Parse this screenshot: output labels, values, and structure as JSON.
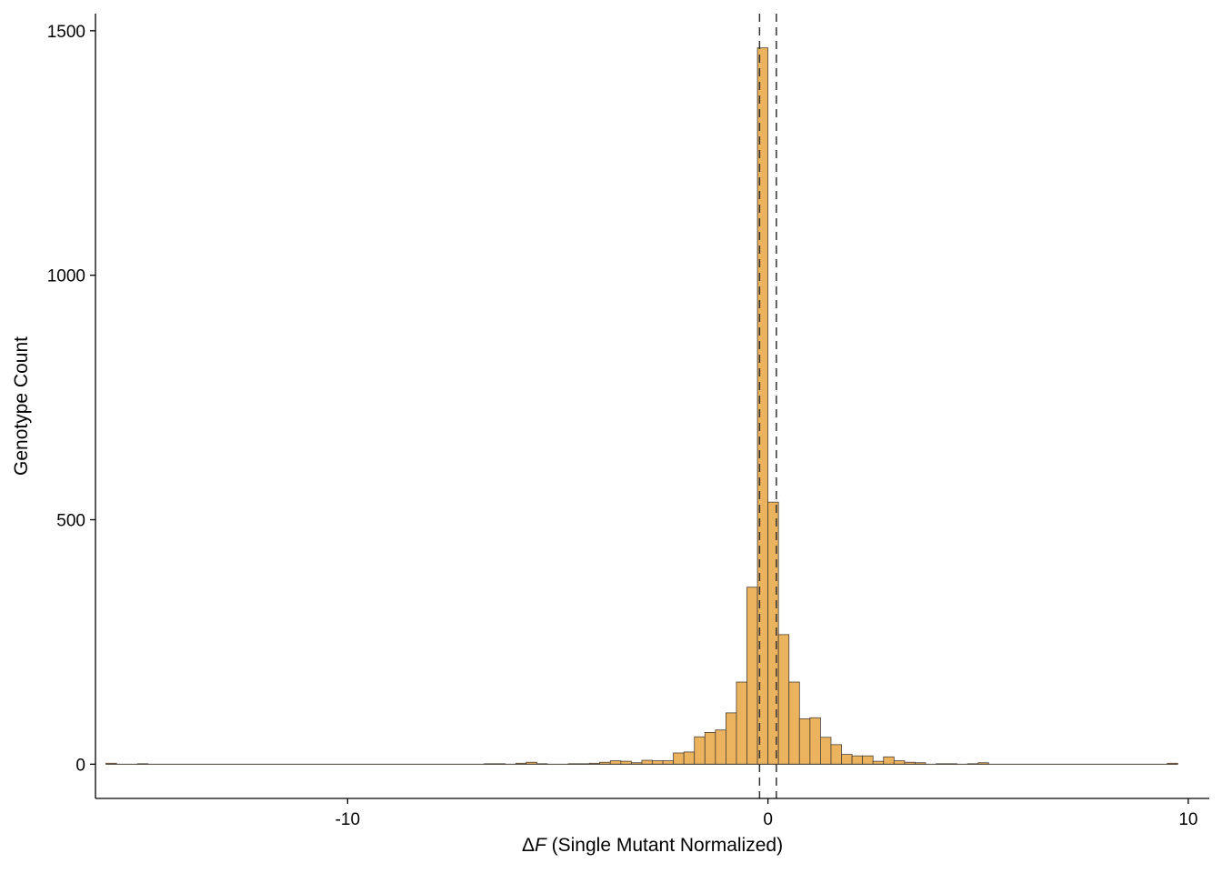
{
  "chart_data": {
    "type": "bar",
    "subtype": "histogram",
    "title": "",
    "xlabel_prefix": "Δ",
    "xlabel_var": "F",
    "xlabel_rest": " (Single Mutant Normalized)",
    "ylabel": "Genotype Count",
    "xlim": [
      -16.0,
      10.5
    ],
    "ylim": [
      -70,
      1535
    ],
    "x_ticks": [
      -10,
      0,
      10
    ],
    "x_tick_labels": [
      "-10",
      "0",
      "10"
    ],
    "y_ticks": [
      0,
      500,
      1000,
      1500
    ],
    "y_tick_labels": [
      "0",
      "500",
      "1000",
      "1500"
    ],
    "grid": false,
    "legend": "none",
    "bin_width": 0.25,
    "bins": [
      {
        "x": -15.625,
        "count": 2
      },
      {
        "x": -14.875,
        "count": 1
      },
      {
        "x": -6.625,
        "count": 1
      },
      {
        "x": -6.375,
        "count": 1
      },
      {
        "x": -5.875,
        "count": 2
      },
      {
        "x": -5.625,
        "count": 4
      },
      {
        "x": -5.375,
        "count": 1
      },
      {
        "x": -4.625,
        "count": 1
      },
      {
        "x": -4.375,
        "count": 1
      },
      {
        "x": -4.125,
        "count": 2
      },
      {
        "x": -3.875,
        "count": 4
      },
      {
        "x": -3.625,
        "count": 7
      },
      {
        "x": -3.375,
        "count": 6
      },
      {
        "x": -3.125,
        "count": 3
      },
      {
        "x": -2.875,
        "count": 8
      },
      {
        "x": -2.625,
        "count": 7
      },
      {
        "x": -2.375,
        "count": 7
      },
      {
        "x": -2.125,
        "count": 23
      },
      {
        "x": -1.875,
        "count": 25
      },
      {
        "x": -1.625,
        "count": 56
      },
      {
        "x": -1.375,
        "count": 65
      },
      {
        "x": -1.125,
        "count": 70
      },
      {
        "x": -0.875,
        "count": 105
      },
      {
        "x": -0.625,
        "count": 168
      },
      {
        "x": -0.375,
        "count": 362
      },
      {
        "x": -0.125,
        "count": 1465
      },
      {
        "x": 0.125,
        "count": 536
      },
      {
        "x": 0.375,
        "count": 265
      },
      {
        "x": 0.625,
        "count": 168
      },
      {
        "x": 0.875,
        "count": 93
      },
      {
        "x": 1.125,
        "count": 95
      },
      {
        "x": 1.375,
        "count": 55
      },
      {
        "x": 1.625,
        "count": 40
      },
      {
        "x": 1.875,
        "count": 20
      },
      {
        "x": 2.125,
        "count": 17
      },
      {
        "x": 2.375,
        "count": 17
      },
      {
        "x": 2.625,
        "count": 6
      },
      {
        "x": 2.875,
        "count": 15
      },
      {
        "x": 3.125,
        "count": 7
      },
      {
        "x": 3.375,
        "count": 4
      },
      {
        "x": 3.625,
        "count": 3
      },
      {
        "x": 4.125,
        "count": 1
      },
      {
        "x": 4.375,
        "count": 1
      },
      {
        "x": 4.875,
        "count": 1
      },
      {
        "x": 5.125,
        "count": 3
      },
      {
        "x": 9.625,
        "count": 2
      }
    ],
    "reference_lines_x": [
      -0.2,
      0.2
    ],
    "reference_line_style": "dashed",
    "colors": {
      "bar_fill": "#ecb35e",
      "bar_stroke": "#4a4035",
      "axis": "#000000",
      "reference_line": "#333333"
    }
  }
}
